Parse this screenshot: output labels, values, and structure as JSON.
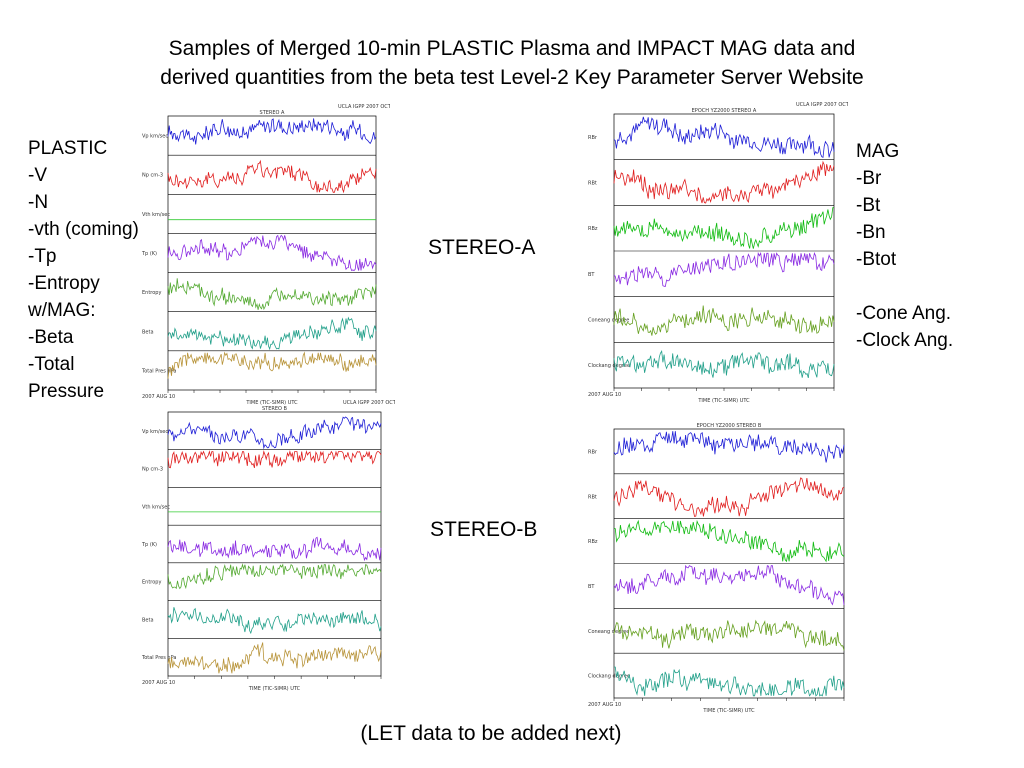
{
  "title": {
    "line1": "Samples of Merged 10-min PLASTIC  Plasma and IMPACT MAG data and",
    "line2": "derived quantities from the beta test Level-2 Key Parameter Server Website"
  },
  "plastic_list": [
    "PLASTIC",
    "-V",
    "-N",
    "-vth (coming)",
    "-Tp",
    "-Entropy",
    "w/MAG:",
    "-Beta",
    "-Total",
    "Pressure"
  ],
  "mag_list": [
    "MAG",
    "-Br",
    "-Bt",
    "-Bn",
    "-Btot",
    "",
    "-Cone Ang.",
    "-Clock Ang."
  ],
  "stereo_a_label": "STEREO-A",
  "stereo_b_label": "STEREO-B",
  "footer": "(LET data to be added next)",
  "plots": {
    "plasma_a": {
      "header": "UCLA IGPP 2007 OCT 23",
      "title": "STEREO A",
      "xlabel": "TIME (TIC-SIMR) UTC",
      "date": "2007 AUG 10",
      "panels": [
        {
          "label": "Vp km/sec",
          "color": "#1f1fd6",
          "spike": 0.0
        },
        {
          "label": "Np cm-3",
          "color": "#e01e1e",
          "spike": 0.9
        },
        {
          "label": "Vth km/sec",
          "color": "#33cc33",
          "spike": 0.0,
          "flat": true
        },
        {
          "label": "Tp (K)",
          "color": "#8a2be2",
          "spike": 0.0
        },
        {
          "label": "Entropy",
          "color": "#55aa33",
          "spike": 0.0
        },
        {
          "label": "Beta",
          "color": "#22a08a",
          "spike": 0.0
        },
        {
          "label": "Total Pres nPa",
          "color": "#b8943a",
          "spike": 0.8
        }
      ]
    },
    "plasma_b": {
      "header": "UCLA IGPP 2007 OCT 23",
      "title": "STEREO B",
      "xlabel": "TIME (TIC-SIMR) UTC",
      "date": "2007 AUG 10",
      "panels": [
        {
          "label": "Vp km/sec",
          "color": "#1f1fd6",
          "spike": 0.0
        },
        {
          "label": "Np cm-3",
          "color": "#e01e1e",
          "spike": 0.9
        },
        {
          "label": "Vth km/sec",
          "color": "#33cc33",
          "spike": 0.0,
          "flat": true
        },
        {
          "label": "Tp (K)",
          "color": "#8a2be2",
          "spike": 0.0
        },
        {
          "label": "Entropy",
          "color": "#55aa33",
          "spike": 0.0
        },
        {
          "label": "Beta",
          "color": "#22a08a",
          "spike": 0.0
        },
        {
          "label": "Total Pres nPa",
          "color": "#b8943a",
          "spike": 0.9
        }
      ]
    },
    "mag_a": {
      "header": "UCLA IGPP 2007 OCT 22",
      "title": "EPOCH YZ2000 STEREO A",
      "xlabel": "TIME (TIC-SIMR) UTC",
      "date": "2007 AUG 10",
      "panels": [
        {
          "label": "RBr",
          "color": "#1f1fd6",
          "spike": 0.0
        },
        {
          "label": "RBt",
          "color": "#e01e1e",
          "spike": 0.0
        },
        {
          "label": "RBz",
          "color": "#11bb11",
          "spike": 0.0
        },
        {
          "label": "BT",
          "color": "#8a2be2",
          "spike": 0.0
        },
        {
          "label": "Coneang degree",
          "color": "#66a020",
          "spike": 0.0
        },
        {
          "label": "Clockang degree",
          "color": "#22a08a",
          "spike": 0.0
        }
      ]
    },
    "mag_b": {
      "header": "",
      "title": "EPOCH YZ2000 STEREO B",
      "xlabel": "TIME (TIC-SIMR) UTC",
      "date": "2007 AUG 10",
      "panels": [
        {
          "label": "RBr",
          "color": "#1f1fd6",
          "spike": 0.0
        },
        {
          "label": "RBt",
          "color": "#e01e1e",
          "spike": 0.0
        },
        {
          "label": "RBz",
          "color": "#11bb11",
          "spike": 0.0
        },
        {
          "label": "BT",
          "color": "#8a2be2",
          "spike": 0.9
        },
        {
          "label": "Coneang degree",
          "color": "#66a020",
          "spike": 0.0
        },
        {
          "label": "Clockang degree",
          "color": "#22a08a",
          "spike": 0.0
        }
      ]
    }
  }
}
